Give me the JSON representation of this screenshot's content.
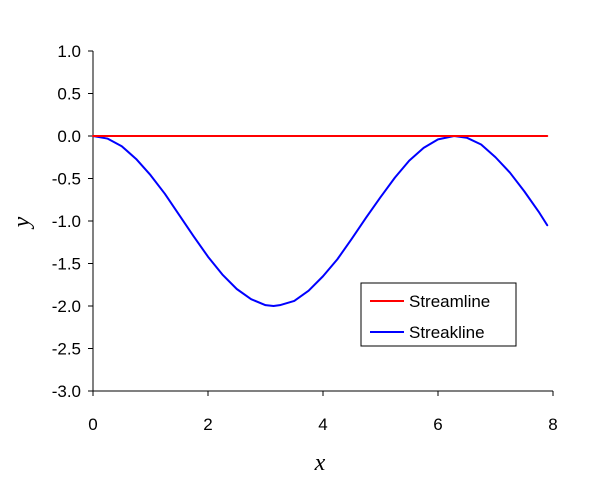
{
  "chart_data": {
    "type": "line",
    "xlabel": "x",
    "ylabel": "y",
    "xlim": [
      0,
      8
    ],
    "ylim": [
      -3.0,
      1.0
    ],
    "x_ticks": [
      "0",
      "2",
      "4",
      "6",
      "8"
    ],
    "y_ticks": [
      "1.0",
      "0.5",
      "0.0",
      "-0.5",
      "-1.0",
      "-1.5",
      "-2.0",
      "-2.5",
      "-3.0"
    ],
    "grid": false,
    "legend_position": "lower-right",
    "series": [
      {
        "name": "Streamline",
        "color": "#ff0000",
        "x": [
          0,
          7.9
        ],
        "y": [
          0.0,
          0.0
        ]
      },
      {
        "name": "Streakline",
        "color": "#0000ff",
        "x": [
          0,
          0.25,
          0.5,
          0.75,
          1.0,
          1.25,
          1.5,
          1.75,
          2.0,
          2.25,
          2.5,
          2.75,
          3.0,
          3.14,
          3.25,
          3.5,
          3.75,
          4.0,
          4.25,
          4.5,
          4.75,
          5.0,
          5.25,
          5.5,
          5.75,
          6.0,
          6.28,
          6.5,
          6.75,
          7.0,
          7.25,
          7.5,
          7.75,
          7.9
        ],
        "y": [
          0.0,
          -0.03,
          -0.12,
          -0.27,
          -0.46,
          -0.68,
          -0.93,
          -1.18,
          -1.42,
          -1.63,
          -1.8,
          -1.92,
          -1.99,
          -2.0,
          -1.99,
          -1.94,
          -1.82,
          -1.65,
          -1.45,
          -1.21,
          -0.96,
          -0.72,
          -0.49,
          -0.29,
          -0.14,
          -0.04,
          0.0,
          -0.02,
          -0.1,
          -0.25,
          -0.43,
          -0.65,
          -0.89,
          -1.05
        ]
      }
    ]
  }
}
